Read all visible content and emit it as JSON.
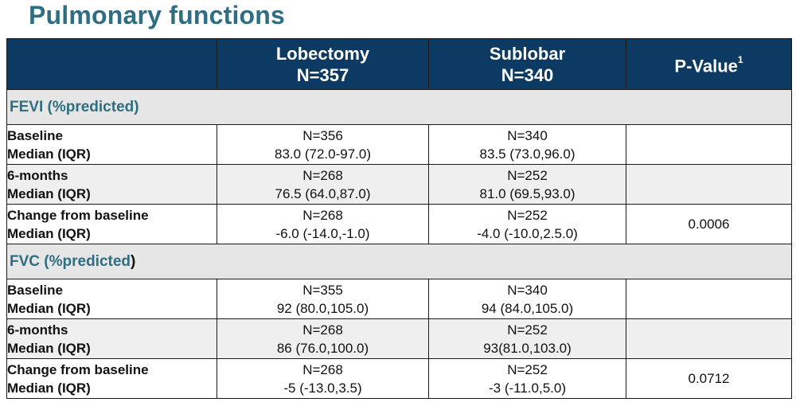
{
  "title": "Pulmonary functions",
  "header": {
    "col1_line1": "Lobectomy",
    "col1_line2": "N=357",
    "col2_line1": "Sublobar",
    "col2_line2": "N=340",
    "col3": "P-Value",
    "col3_sup": "1"
  },
  "groups": [
    {
      "label": "FEVI (%predicted)",
      "rows": [
        {
          "line1": "Baseline",
          "line2": "Median (IQR)",
          "lob_n": "N=356",
          "lob_val": "83.0 (72.0-97.0)",
          "sub_n": "N=340",
          "sub_val": "83.5 (73.0,96.0)",
          "p": ""
        },
        {
          "line1": "6-months",
          "line2": "Median (IQR)",
          "lob_n": "N=268",
          "lob_val": "76.5 (64.0,87.0)",
          "sub_n": "N=252",
          "sub_val": "81.0 (69.5,93.0)",
          "p": ""
        },
        {
          "line1": "Change from baseline",
          "line2": "Median (IQR)",
          "lob_n": "N=268",
          "lob_val": "-6.0 (-14.0,-1.0)",
          "sub_n": "N=252",
          "sub_val": "-4.0 (-10.0,2.5.0)",
          "p": "0.0006"
        }
      ]
    },
    {
      "label_main": "FVC (%predicted",
      "label_close": ")",
      "rows": [
        {
          "line1": "Baseline",
          "line2": "Median (IQR)",
          "lob_n": "N=355",
          "lob_val": "92 (80.0,105.0)",
          "sub_n": "N=340",
          "sub_val": "94 (84.0,105.0)",
          "p": ""
        },
        {
          "line1": "6-months",
          "line2": "Median (IQR)",
          "lob_n": "N=268",
          "lob_val": "86 (76.0,100.0)",
          "sub_n": "N=252",
          "sub_val": "93(81.0,103.0)",
          "p": ""
        },
        {
          "line1": "Change from baseline",
          "line2": "Median (IQR)",
          "lob_n": "N=268",
          "lob_val": "-5 (-13.0,3.5)",
          "sub_n": "N=252",
          "sub_val": "-3 (-11.0,5.0)",
          "p": "0.0712"
        }
      ]
    }
  ]
}
